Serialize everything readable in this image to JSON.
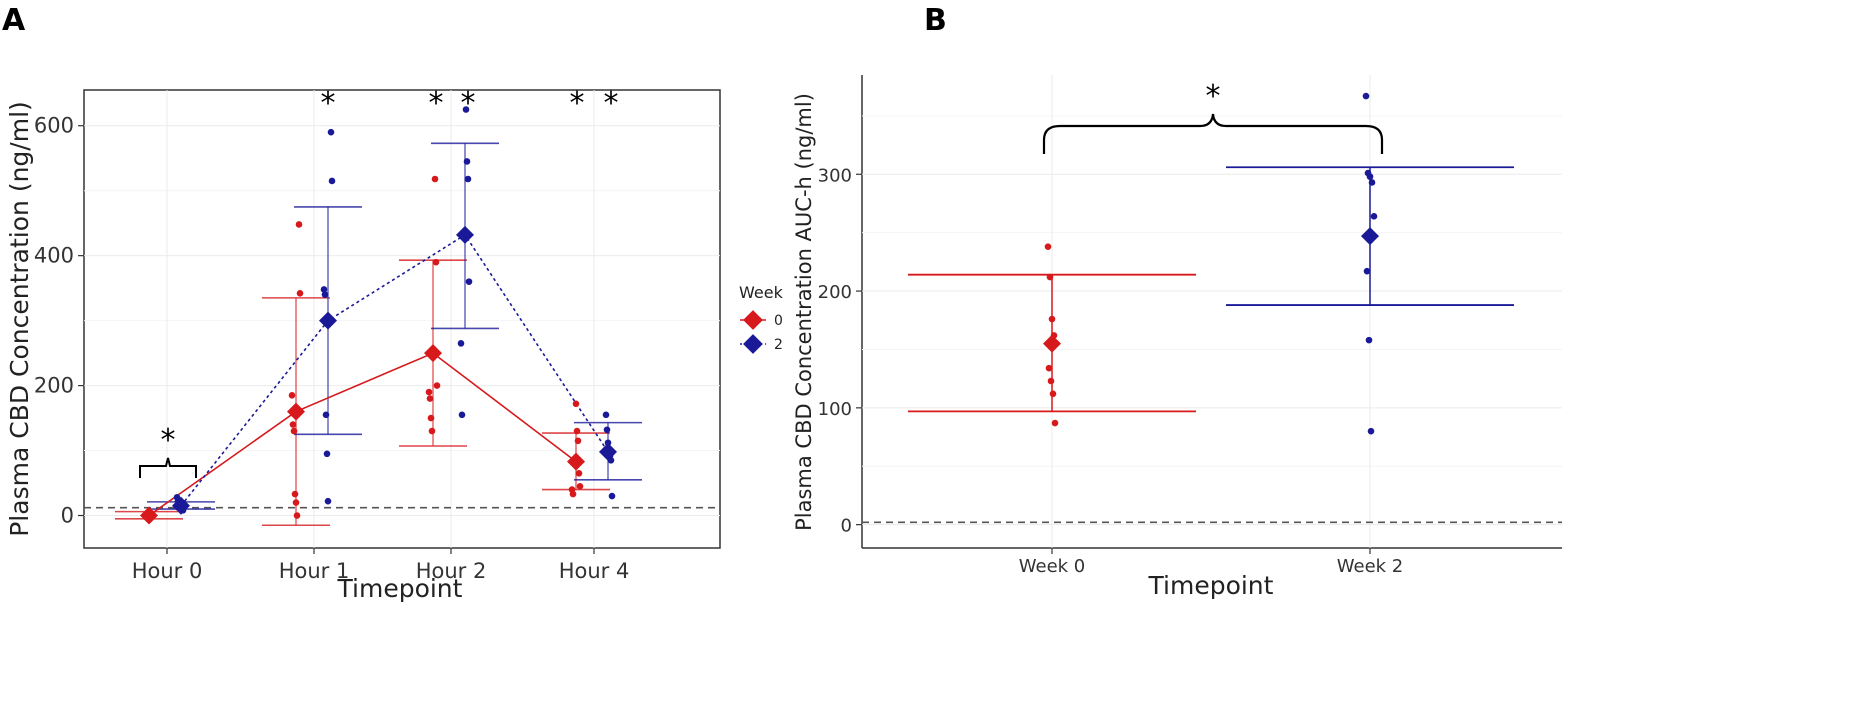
{
  "panels": {
    "a": "A",
    "b": "B"
  },
  "legend": {
    "title": "Week",
    "entries": [
      {
        "label": "0",
        "color": "#D7191C"
      },
      {
        "label": "2",
        "color": "#1A1A99"
      }
    ]
  },
  "colors": {
    "week0": "#D7191C",
    "week2": "#1A1A99",
    "grid": "#EBEBEB",
    "lloq": "#555555"
  },
  "chart_data": [
    {
      "type": "scatter",
      "title": "",
      "xlabel": "Timepoint",
      "ylabel": "Plasma CBD Concentration (ng/ml)",
      "categories": [
        "Hour 0",
        "Hour 1",
        "Hour 2",
        "Hour 4"
      ],
      "yticks": [
        0,
        200,
        400,
        600
      ],
      "ylim": [
        -50,
        655
      ],
      "reference_line_y": 12,
      "series": [
        {
          "name": "0",
          "color": "#D7191C",
          "line": "solid",
          "means": [
            0,
            160,
            250,
            83
          ],
          "error_low": [
            -5,
            -15,
            107,
            40
          ],
          "error_high": [
            6,
            335,
            393,
            127
          ],
          "points": [
            [
              0,
              0
            ],
            [
              0,
              -2
            ],
            [
              0,
              1
            ],
            [
              0,
              3
            ],
            [
              0,
              -1
            ],
            [
              0,
              2
            ],
            [
              0,
              0
            ],
            [
              1,
              448
            ],
            [
              1,
              342
            ],
            [
              1,
              185
            ],
            [
              1,
              140
            ],
            [
              1,
              130
            ],
            [
              1,
              33
            ],
            [
              1,
              20
            ],
            [
              1,
              0
            ],
            [
              2,
              518
            ],
            [
              2,
              390
            ],
            [
              2,
              200
            ],
            [
              2,
              190
            ],
            [
              2,
              180
            ],
            [
              2,
              150
            ],
            [
              2,
              130
            ],
            [
              3,
              172
            ],
            [
              3,
              130
            ],
            [
              3,
              115
            ],
            [
              3,
              65
            ],
            [
              3,
              45
            ],
            [
              3,
              40
            ],
            [
              3,
              33
            ]
          ]
        },
        {
          "name": "2",
          "color": "#1A1A99",
          "line": "dotted",
          "means": [
            15,
            300,
            432,
            98
          ],
          "error_low": [
            10,
            125,
            288,
            55
          ],
          "error_high": [
            21,
            475,
            573,
            143
          ],
          "points": [
            [
              0,
              28
            ],
            [
              0,
              22
            ],
            [
              0,
              18
            ],
            [
              0,
              15
            ],
            [
              0,
              12
            ],
            [
              0,
              10
            ],
            [
              0,
              8
            ],
            [
              1,
              590
            ],
            [
              1,
              515
            ],
            [
              1,
              348
            ],
            [
              1,
              340
            ],
            [
              1,
              155
            ],
            [
              1,
              95
            ],
            [
              1,
              22
            ],
            [
              2,
              625
            ],
            [
              2,
              545
            ],
            [
              2,
              518
            ],
            [
              2,
              360
            ],
            [
              2,
              265
            ],
            [
              2,
              155
            ],
            [
              3,
              155
            ],
            [
              3,
              132
            ],
            [
              3,
              112
            ],
            [
              3,
              100
            ],
            [
              3,
              92
            ],
            [
              3,
              85
            ],
            [
              3,
              30
            ]
          ]
        }
      ],
      "annotations": [
        {
          "text": "*",
          "position": "Hour 0 bracket"
        },
        {
          "text": "*",
          "position": "Hour 1 week 2"
        },
        {
          "text": "*",
          "position": "Hour 2 week 0"
        },
        {
          "text": "*",
          "position": "Hour 2 week 2"
        },
        {
          "text": "*",
          "position": "Hour 4 week 0"
        },
        {
          "text": "*",
          "position": "Hour 4 week 2"
        }
      ]
    },
    {
      "type": "scatter",
      "title": "",
      "xlabel": "Timepoint",
      "ylabel": "Plasma CBD Concentration AUC-h (ng/ml)",
      "categories": [
        "Week 0",
        "Week 2"
      ],
      "yticks": [
        0,
        100,
        200,
        300
      ],
      "ylim": [
        -20,
        385
      ],
      "reference_line_y": 2,
      "series": [
        {
          "name": "0",
          "color": "#D7191C",
          "mean": 155,
          "error_low": 97,
          "error_high": 214,
          "points": [
            238,
            212,
            176,
            162,
            155,
            134,
            123,
            112,
            87
          ]
        },
        {
          "name": "2",
          "color": "#1A1A99",
          "mean": 247,
          "error_low": 188,
          "error_high": 306,
          "points": [
            367,
            301,
            298,
            293,
            264,
            217,
            158,
            80
          ]
        }
      ],
      "annotations": [
        {
          "text": "*",
          "position": "bracket Week 0 to Week 2"
        }
      ]
    }
  ]
}
